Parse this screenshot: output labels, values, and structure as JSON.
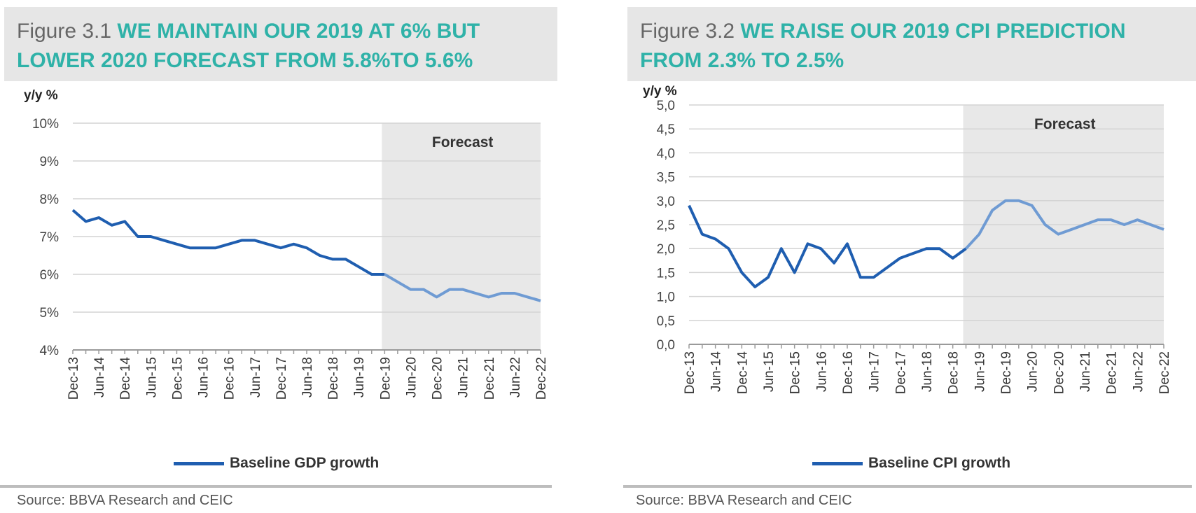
{
  "figures": [
    {
      "label": "Figure 3.1",
      "headline_line1": "WE MAINTAIN OUR 2019 AT 6% BUT",
      "headline_line2": "LOWER 2020 FORECAST FROM 5.8%TO 5.6%",
      "source": "Source: BBVA Research and CEIC"
    },
    {
      "label": "Figure 3.2",
      "headline_line1": "WE RAISE OUR 2019 CPI PREDICTION",
      "headline_line2": "FROM 2.3% TO 2.5%",
      "source": "Source: BBVA Research and CEIC"
    }
  ],
  "colors": {
    "headline": "#2fb2a8",
    "line_history": "#1f5eb0",
    "line_forecast": "#6f9bd3",
    "forecast_band": "#e8e8e8",
    "grid": "#d4d4d4"
  },
  "chart_data": [
    {
      "type": "line",
      "ylabel": "y/y %",
      "ylim": [
        4,
        10
      ],
      "yticks": [
        4,
        5,
        6,
        7,
        8,
        9,
        10
      ],
      "ytick_labels": [
        "4%",
        "5%",
        "6%",
        "7%",
        "8%",
        "9%",
        "10%"
      ],
      "grid": true,
      "x_count": 37,
      "xtick_labels": [
        "Dec-13",
        "Jun-14",
        "Dec-14",
        "Jun-15",
        "Dec-15",
        "Jun-16",
        "Dec-16",
        "Jun-17",
        "Dec-17",
        "Jun-18",
        "Dec-18",
        "Jun-19",
        "Dec-19",
        "Jun-20",
        "Dec-20",
        "Jun-21",
        "Dec-21",
        "Jun-22",
        "Dec-22"
      ],
      "forecast_label": "Forecast",
      "forecast_start_index": 24,
      "legend_position": "bottom",
      "series": [
        {
          "name": "Baseline GDP growth",
          "values": [
            7.7,
            7.4,
            7.5,
            7.3,
            7.4,
            7.0,
            7.0,
            6.9,
            6.8,
            6.7,
            6.7,
            6.7,
            6.8,
            6.9,
            6.9,
            6.8,
            6.7,
            6.8,
            6.7,
            6.5,
            6.4,
            6.4,
            6.2,
            6.0,
            6.0,
            5.8,
            5.6,
            5.6,
            5.4,
            5.6,
            5.6,
            5.5,
            5.4,
            5.5,
            5.5,
            5.4,
            5.3
          ]
        }
      ]
    },
    {
      "type": "line",
      "ylabel": "y/y %",
      "ylim": [
        0,
        5
      ],
      "yticks": [
        0,
        0.5,
        1,
        1.5,
        2,
        2.5,
        3,
        3.5,
        4,
        4.5,
        5
      ],
      "ytick_labels": [
        "0,0",
        "0,5",
        "1,0",
        "1,5",
        "2,0",
        "2,5",
        "3,0",
        "3,5",
        "4,0",
        "4,5",
        "5,0"
      ],
      "grid": true,
      "x_count": 37,
      "xtick_labels": [
        "Dec-13",
        "Jun-14",
        "Dec-14",
        "Jun-15",
        "Dec-15",
        "Jun-16",
        "Dec-16",
        "Jun-17",
        "Dec-17",
        "Jun-18",
        "Dec-18",
        "Jun-19",
        "Dec-19",
        "Jun-20",
        "Dec-20",
        "Jun-21",
        "Dec-21",
        "Jun-22",
        "Dec-22"
      ],
      "forecast_label": "Forecast",
      "forecast_start_index": 21,
      "legend_position": "bottom",
      "series": [
        {
          "name": "Baseline CPI growth",
          "values": [
            2.9,
            2.3,
            2.2,
            2.0,
            1.5,
            1.2,
            1.4,
            2.0,
            1.5,
            2.1,
            2.0,
            1.7,
            2.1,
            1.4,
            1.4,
            1.6,
            1.8,
            1.9,
            2.0,
            2.0,
            1.8,
            2.0,
            2.3,
            2.8,
            3.0,
            3.0,
            2.9,
            2.5,
            2.3,
            2.4,
            2.5,
            2.6,
            2.6,
            2.5,
            2.6,
            2.5,
            2.4
          ]
        }
      ]
    }
  ]
}
